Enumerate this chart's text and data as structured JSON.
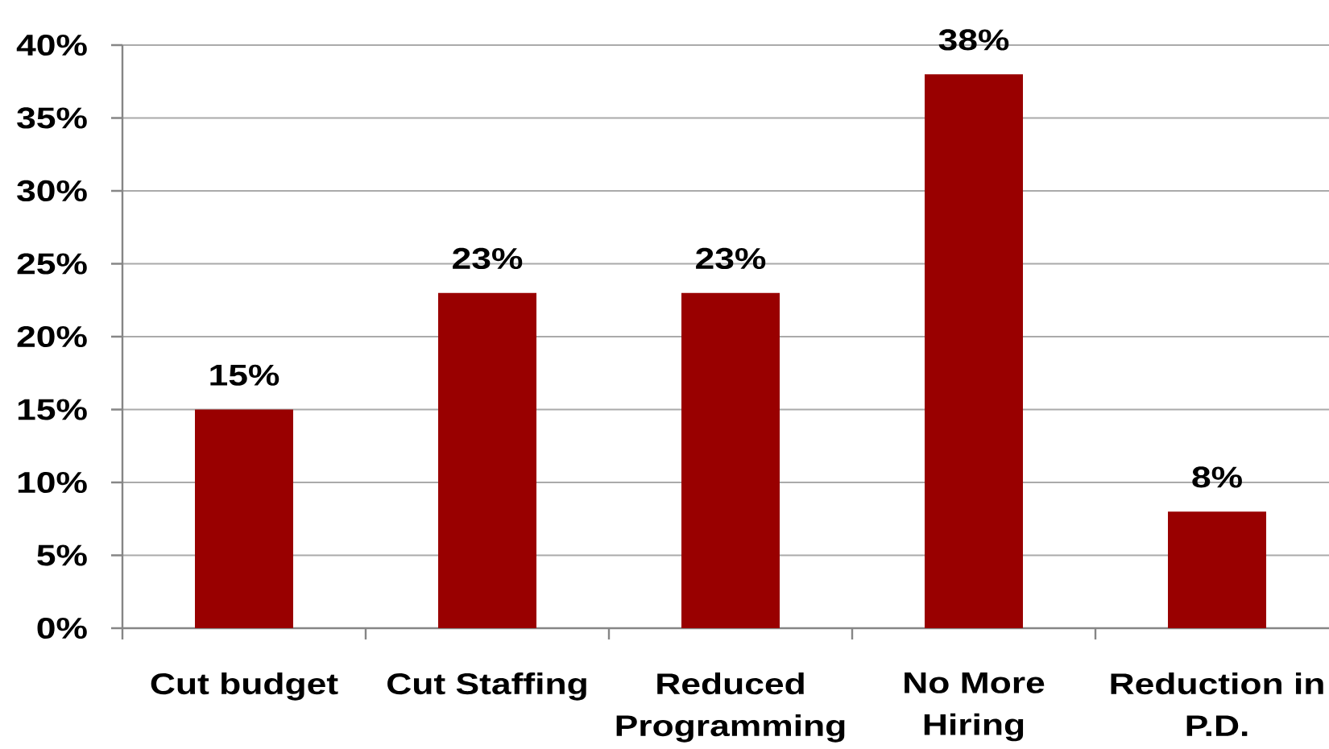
{
  "chart_data": {
    "type": "bar",
    "categories": [
      "Cut budget",
      "Cut Staffing",
      "Reduced Programming",
      "No More Hiring",
      "Reduction in P.D."
    ],
    "values": [
      15,
      23,
      23,
      38,
      8
    ],
    "value_labels": [
      "15%",
      "23%",
      "23%",
      "38%",
      "8%"
    ],
    "color": "#990000",
    "ylim": [
      0,
      40
    ],
    "yticks": [
      {
        "value": 0,
        "label": "0%"
      },
      {
        "value": 5,
        "label": "5%"
      },
      {
        "value": 10,
        "label": "10%"
      },
      {
        "value": 15,
        "label": "15%"
      },
      {
        "value": 20,
        "label": "20%"
      },
      {
        "value": 25,
        "label": "25%"
      },
      {
        "value": 30,
        "label": "30%"
      },
      {
        "value": 35,
        "label": "35%"
      },
      {
        "value": 40,
        "label": "40%"
      }
    ],
    "grid": "y"
  }
}
